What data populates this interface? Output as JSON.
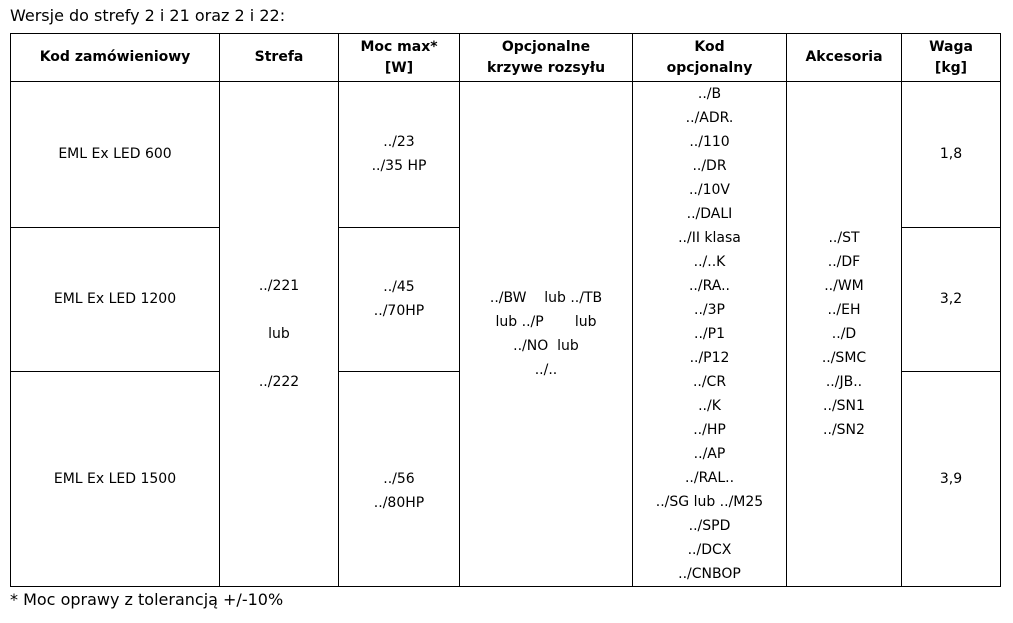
{
  "caption": "Wersje do strefy 2 i 21 oraz 2 i 22:",
  "headers": [
    "Kod zamówieniowy",
    "Strefa",
    "Moc max*\n[W]",
    "Opcjonalne\nkrzywe rozsyłu",
    "Kod\nopcjonalny",
    "Akcesoria",
    "Waga\n[kg]"
  ],
  "header_lines": {
    "h0": [
      "Kod zamówieniowy"
    ],
    "h1": [
      "Strefa"
    ],
    "h2": [
      "Moc max*",
      "[W]"
    ],
    "h3": [
      "Opcjonalne",
      "krzywe rozsyłu"
    ],
    "h4": [
      "Kod",
      "opcjonalny"
    ],
    "h5": [
      "Akcesoria"
    ],
    "h6": [
      "Waga",
      "[kg]"
    ]
  },
  "rows": [
    {
      "kod": "EML Ex LED 600",
      "moc": [
        "../23",
        "../35 HP"
      ],
      "waga": "1,8"
    },
    {
      "kod": "EML Ex LED 1200",
      "moc": [
        "../45",
        "../70HP"
      ],
      "waga": "3,2"
    },
    {
      "kod": "EML Ex LED 1500",
      "moc": [
        "../56",
        "../80HP"
      ],
      "waga": "3,9"
    }
  ],
  "strefa": [
    "../221",
    "lub",
    "../222"
  ],
  "krzywe": [
    "../BW    lub ../TB",
    "lub ../P       lub",
    "../NO  lub",
    "../.."
  ],
  "kod_opcjonalny": [
    "../B",
    "../ADR.",
    "../110",
    "../DR",
    "../10V",
    "../DALI",
    "../II klasa",
    "../..K",
    "../RA..",
    "../3P",
    "../P1",
    "../P12",
    "../CR",
    "../K",
    "../HP",
    "../AP",
    "../RAL..",
    "../SG lub ../M25",
    "../SPD",
    "../DCX",
    "../CNBOP"
  ],
  "akcesoria": [
    "../ST",
    "../DF",
    "../WM",
    "../EH",
    "../D",
    "../SMC",
    "../JB..",
    "../SN1",
    "../SN2"
  ],
  "footnote": "* Moc oprawy z tolerancją +/-10%"
}
